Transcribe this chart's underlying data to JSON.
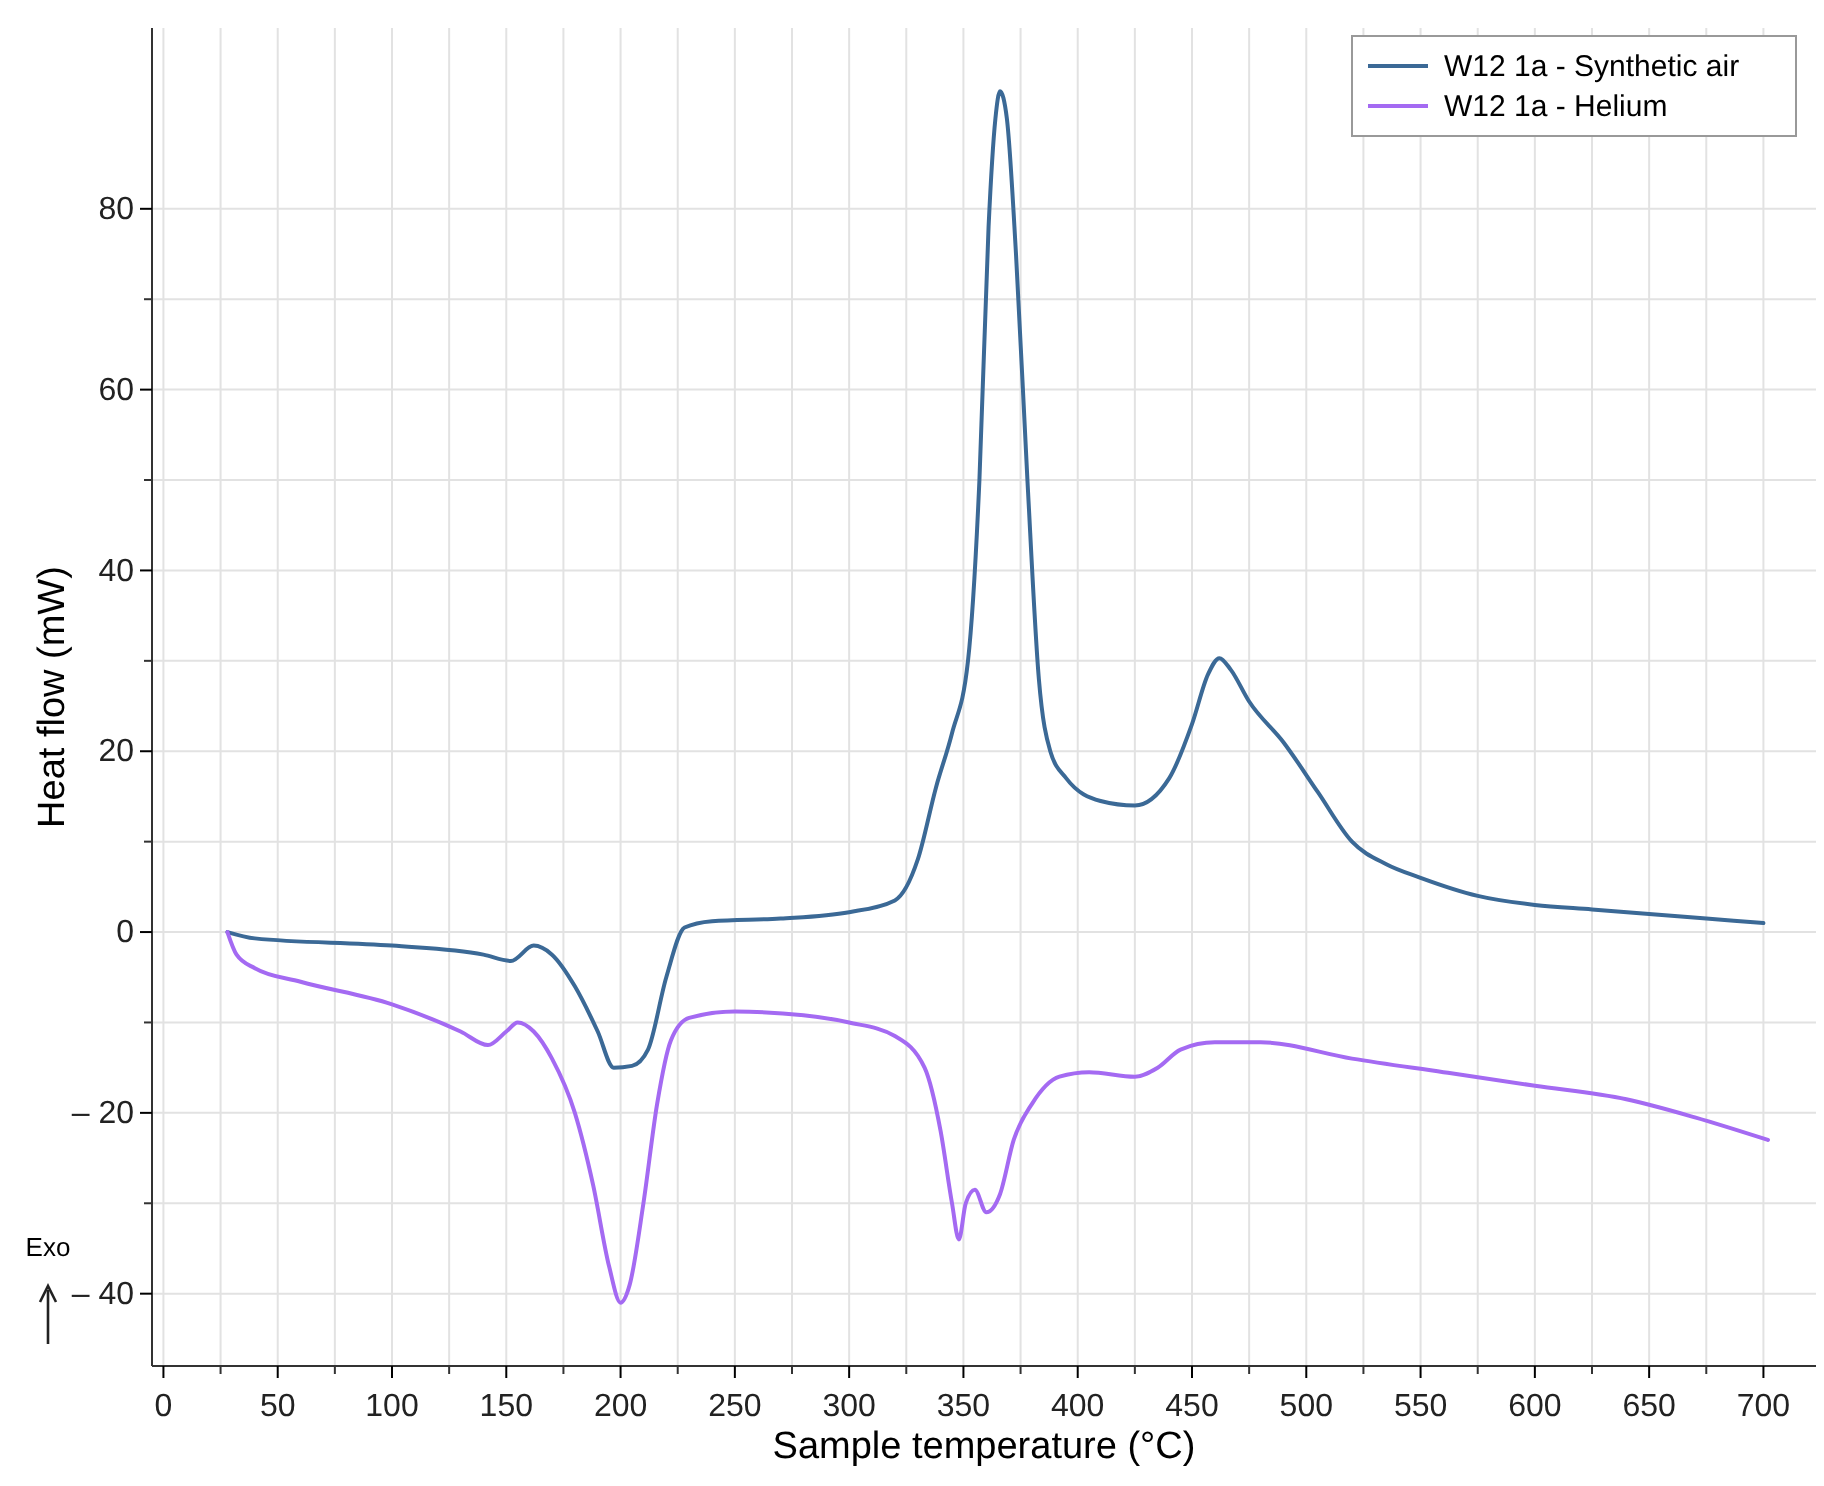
{
  "chart_data": {
    "type": "line",
    "xlabel": "Sample temperature (°C)",
    "ylabel": "Heat flow (mW)",
    "xlim": [
      -5,
      723
    ],
    "ylim": [
      -48,
      100
    ],
    "xticks": [
      0,
      50,
      100,
      150,
      200,
      250,
      300,
      350,
      400,
      450,
      500,
      550,
      600,
      650,
      700
    ],
    "yticks": [
      {
        "value": -40,
        "label": "– 40"
      },
      {
        "value": -20,
        "label": "– 20"
      },
      0,
      20,
      40,
      60,
      80
    ],
    "grid": true,
    "legend": "top right",
    "line_style": "solid",
    "marker": "none",
    "annotations": [
      "Exo"
    ],
    "series": [
      {
        "name": "W12 1a - Synthetic air",
        "color": "#3b6996",
        "x": [
          28,
          40,
          100,
          140,
          152,
          162,
          170,
          180,
          190,
          197,
          205,
          212,
          220,
          228,
          240,
          270,
          300,
          320,
          330,
          338,
          345,
          352,
          357,
          361,
          364,
          366,
          369,
          373,
          378,
          383,
          388,
          395,
          410,
          425,
          440,
          450,
          457,
          462,
          467,
          475,
          490,
          505,
          520,
          535,
          550,
          575,
          600,
          625,
          650,
          675,
          700
        ],
        "values": [
          0,
          -0.7,
          -1.5,
          -2.5,
          -3.2,
          -1.5,
          -2.5,
          -6,
          -11,
          -15,
          -14.8,
          -13,
          -5,
          0.5,
          1.2,
          1.5,
          2.2,
          3.5,
          8,
          16,
          22,
          30,
          50,
          78,
          90,
          93,
          90,
          75,
          50,
          28,
          20,
          17,
          14.5,
          14,
          17,
          23,
          28.5,
          30.3,
          29,
          25.5,
          21,
          15.5,
          10,
          7.5,
          6,
          4,
          3,
          2.5,
          2,
          1.5,
          1
        ]
      },
      {
        "name": "W12 1a - Helium",
        "color": "#a46af2",
        "x": [
          28,
          32,
          40,
          60,
          100,
          130,
          142,
          150,
          155,
          162,
          170,
          180,
          188,
          195,
          200,
          204,
          210,
          216,
          222,
          230,
          250,
          280,
          300,
          320,
          333,
          340,
          345,
          348,
          351,
          355,
          360,
          366,
          372,
          380,
          392,
          405,
          425,
          435,
          445,
          460,
          480,
          520,
          560,
          600,
          640,
          670,
          702
        ],
        "values": [
          0,
          -2.5,
          -4,
          -5.5,
          -8,
          -11,
          -12.5,
          -11,
          -10,
          -11,
          -14,
          -20,
          -28,
          -37,
          -41,
          -39,
          -30,
          -19,
          -12,
          -9.5,
          -8.8,
          -9.2,
          -10,
          -11.5,
          -15,
          -22,
          -30,
          -34,
          -30,
          -28.5,
          -31,
          -29,
          -23,
          -19,
          -16,
          -15.5,
          -16,
          -15,
          -13,
          -12.2,
          -12.2,
          -14,
          -15.5,
          -17,
          -18.5,
          -20.5,
          -23
        ]
      }
    ]
  }
}
